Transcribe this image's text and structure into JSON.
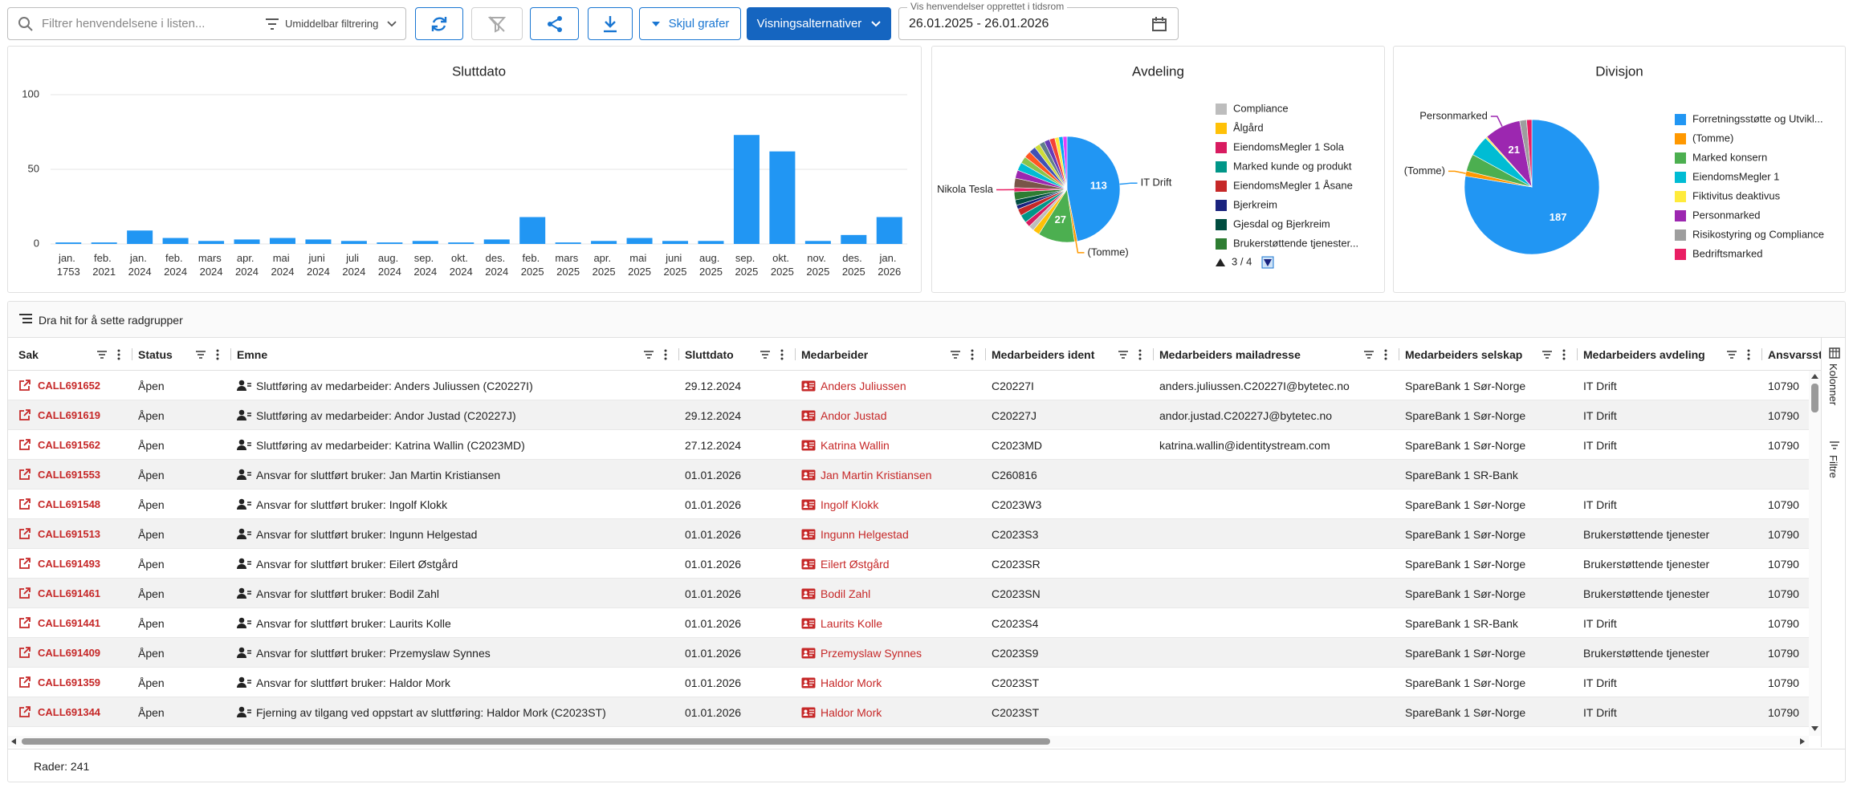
{
  "toolbar": {
    "search_placeholder": "Filtrer henvendelsene i listen...",
    "filter_mode": "Umiddelbar filtrering",
    "hide_charts": "Skjul grafer",
    "view_options": "Visningsalternativer",
    "date_label": "Vis henvendelser opprettet i tidsrom",
    "date_range": "26.01.2025 - 26.01.2026"
  },
  "chart_data": [
    {
      "type": "bar",
      "title": "Sluttdato",
      "categories": [
        "jan. 1753",
        "feb. 2021",
        "jan. 2024",
        "feb. 2024",
        "mars 2024",
        "apr. 2024",
        "mai 2024",
        "juni 2024",
        "juli 2024",
        "aug. 2024",
        "sep. 2024",
        "okt. 2024",
        "des. 2024",
        "feb. 2025",
        "mars 2025",
        "apr. 2025",
        "mai 2025",
        "juni 2025",
        "aug. 2025",
        "sep. 2025",
        "okt. 2025",
        "nov. 2025",
        "des. 2025",
        "jan. 2026"
      ],
      "values": [
        1,
        1,
        9,
        4,
        2,
        3,
        4,
        3,
        2,
        1,
        2,
        1,
        3,
        18,
        1,
        2,
        4,
        2,
        2,
        73,
        62,
        2,
        6,
        18
      ],
      "color": "#2196f3",
      "ylim": [
        0,
        100
      ],
      "yticks": [
        0,
        50,
        100
      ],
      "grid": true
    },
    {
      "type": "pie",
      "title": "Avdeling",
      "categories": [
        "IT Drift",
        "(Tomme)",
        null,
        null,
        null,
        null,
        null,
        null,
        null,
        null,
        null,
        "Nikola Tesla",
        null,
        null,
        null,
        null,
        null,
        null,
        null,
        null,
        null,
        null,
        null,
        null,
        null
      ],
      "values": [
        113,
        2,
        27,
        5,
        4,
        4,
        6,
        5,
        3,
        4,
        6,
        3,
        7,
        6,
        6,
        5,
        5,
        5,
        4,
        4,
        4,
        4,
        3,
        3,
        3
      ],
      "colors": [
        "#2196f3",
        "#ff9800",
        "#4caf50",
        "#ffc107",
        "#bdbdbd",
        "#d81b60",
        "#009688",
        "#c62828",
        "#1a237e",
        "#004d40",
        "#2e7d32",
        "#e91e63",
        "#795548",
        "#9c27b0",
        "#00bcd4",
        "#8bc34a",
        "#ff5722",
        "#3f51b5",
        "#cddc39",
        "#607d8b",
        "#673ab7",
        "#f44336",
        "#ffeb3b",
        "#03a9f4",
        "#e040fb"
      ],
      "legend": [
        {
          "name": "Compliance",
          "color": "#bdbdbd"
        },
        {
          "name": "Ålgård",
          "color": "#ffc107"
        },
        {
          "name": "EiendomsMegler 1 Sola",
          "color": "#d81b60"
        },
        {
          "name": "Marked kunde og produkt",
          "color": "#009688"
        },
        {
          "name": "EiendomsMegler 1 Åsane",
          "color": "#c62828"
        },
        {
          "name": "Bjerkreim",
          "color": "#1a237e"
        },
        {
          "name": "Gjesdal og Bjerkreim",
          "color": "#004d40"
        },
        {
          "name": "Brukerstøttende tjenester...",
          "color": "#2e7d32"
        }
      ],
      "legend_page": "3 / 4"
    },
    {
      "type": "pie",
      "title": "Divisjon",
      "categories": [
        null,
        "(Tomme)",
        null,
        null,
        null,
        "Personmarked",
        null,
        null
      ],
      "values": [
        187,
        3,
        10,
        12,
        1,
        21,
        4,
        3
      ],
      "colors": [
        "#2196f3",
        "#ff9800",
        "#4caf50",
        "#00bcd4",
        "#ffeb3b",
        "#9c27b0",
        "#9e9e9e",
        "#e91e63"
      ],
      "legend": [
        {
          "name": "Forretningsstøtte og Utvikl...",
          "color": "#2196f3"
        },
        {
          "name": "(Tomme)",
          "color": "#ff9800"
        },
        {
          "name": "Marked konsern",
          "color": "#4caf50"
        },
        {
          "name": "EiendomsMegler 1",
          "color": "#00bcd4"
        },
        {
          "name": "Fiktivitus deaktivus",
          "color": "#ffeb3b"
        },
        {
          "name": "Personmarked",
          "color": "#9c27b0"
        },
        {
          "name": "Risikostyring og Compliance",
          "color": "#9e9e9e"
        },
        {
          "name": "Bedriftsmarked",
          "color": "#e91e63"
        }
      ]
    }
  ],
  "table": {
    "group_hint": "Dra hit for å sette radgrupper",
    "columns": [
      "Sak",
      "Status",
      "Emne",
      "Sluttdato",
      "Medarbeider",
      "Medarbeiders ident",
      "Medarbeiders mailadresse",
      "Medarbeiders selskap",
      "Medarbeiders avdeling",
      "Ansvarsste"
    ],
    "rows": [
      [
        "CALL691652",
        "Åpen",
        "Sluttføring av medarbeider: Anders Juliussen (C20227I)",
        "29.12.2024",
        "Anders Juliussen",
        "C20227I",
        "anders.juliussen.C20227I@bytetec.no",
        "SpareBank 1 Sør-Norge",
        "IT Drift",
        "10790"
      ],
      [
        "CALL691619",
        "Åpen",
        "Sluttføring av medarbeider: Andor Justad (C20227J)",
        "29.12.2024",
        "Andor Justad",
        "C20227J",
        "andor.justad.C20227J@bytetec.no",
        "SpareBank 1 Sør-Norge",
        "IT Drift",
        "10790"
      ],
      [
        "CALL691562",
        "Åpen",
        "Sluttføring av medarbeider: Katrina Wallin (C2023MD)",
        "27.12.2024",
        "Katrina Wallin",
        "C2023MD",
        "katrina.wallin@identitystream.com",
        "SpareBank 1 Sør-Norge",
        "IT Drift",
        "10790"
      ],
      [
        "CALL691553",
        "Åpen",
        "Ansvar for sluttført bruker: Jan Martin Kristiansen",
        "01.01.2026",
        "Jan Martin Kristiansen",
        "C260816",
        null,
        "SpareBank 1 SR-Bank",
        null,
        null
      ],
      [
        "CALL691548",
        "Åpen",
        "Ansvar for sluttført bruker: Ingolf Klokk",
        "01.01.2026",
        "Ingolf Klokk",
        "C2023W3",
        null,
        "SpareBank 1 Sør-Norge",
        "IT Drift",
        "10790"
      ],
      [
        "CALL691513",
        "Åpen",
        "Ansvar for sluttført bruker: Ingunn Helgestad",
        "01.01.2026",
        "Ingunn Helgestad",
        "C2023S3",
        null,
        "SpareBank 1 Sør-Norge",
        "Brukerstøttende tjenester",
        "10790"
      ],
      [
        "CALL691493",
        "Åpen",
        "Ansvar for sluttført bruker: Eilert Østgård",
        "01.01.2026",
        "Eilert Østgård",
        "C2023SR",
        null,
        "SpareBank 1 Sør-Norge",
        "Brukerstøttende tjenester",
        "10790"
      ],
      [
        "CALL691461",
        "Åpen",
        "Ansvar for sluttført bruker: Bodil Zahl",
        "01.01.2026",
        "Bodil Zahl",
        "C2023SN",
        null,
        "SpareBank 1 Sør-Norge",
        "Brukerstøttende tjenester",
        "10790"
      ],
      [
        "CALL691441",
        "Åpen",
        "Ansvar for sluttført bruker: Laurits Kolle",
        "01.01.2026",
        "Laurits Kolle",
        "C2023S4",
        null,
        "SpareBank 1 SR-Bank",
        "IT Drift",
        "10790"
      ],
      [
        "CALL691409",
        "Åpen",
        "Ansvar for sluttført bruker: Przemyslaw Synnes",
        "01.01.2026",
        "Przemyslaw Synnes",
        "C2023S9",
        null,
        "SpareBank 1 Sør-Norge",
        "Brukerstøttende tjenester",
        "10790"
      ],
      [
        "CALL691359",
        "Åpen",
        "Ansvar for sluttført bruker: Haldor Mork",
        "01.01.2026",
        "Haldor Mork",
        "C2023ST",
        null,
        "SpareBank 1 Sør-Norge",
        "IT Drift",
        "10790"
      ],
      [
        "CALL691344",
        "Åpen",
        "Fjerning av tilgang ved oppstart av sluttføring: Haldor Mork (C2023ST)",
        "01.01.2026",
        "Haldor Mork",
        "C2023ST",
        null,
        "SpareBank 1 Sør-Norge",
        "IT Drift",
        "10790"
      ]
    ],
    "row_count": "Rader: 241"
  },
  "side_tabs": [
    "Kolonner",
    "Filtre"
  ]
}
